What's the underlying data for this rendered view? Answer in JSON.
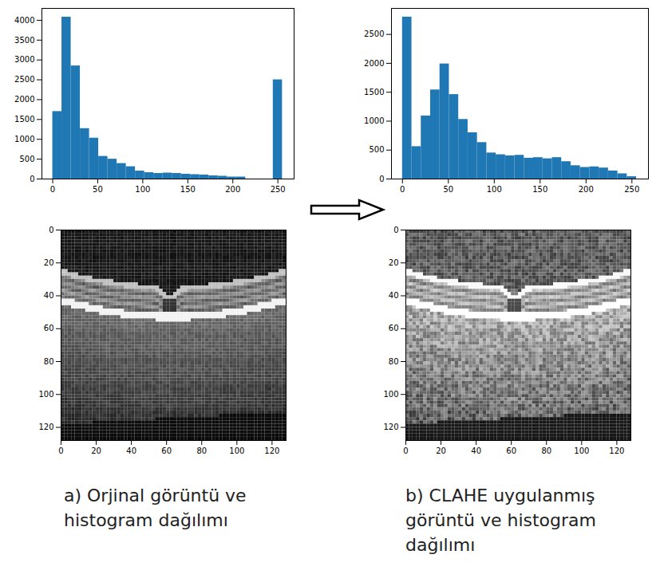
{
  "chart_data": [
    {
      "type": "histogram",
      "color": "#1f77b4",
      "bins": [
        0,
        10.2,
        20.4,
        30.6,
        40.8,
        51,
        61.2,
        71.4,
        81.6,
        91.8,
        102,
        112.2,
        122.4,
        132.6,
        142.8,
        153,
        163.2,
        173.4,
        183.6,
        193.8,
        204,
        214.2,
        224.4,
        234.6,
        244.8,
        255
      ],
      "counts": [
        1700,
        4080,
        2850,
        1270,
        1030,
        570,
        500,
        390,
        310,
        200,
        160,
        140,
        150,
        140,
        120,
        110,
        100,
        80,
        70,
        50,
        50,
        0,
        0,
        0,
        2500
      ],
      "xlim": [
        -12,
        268
      ],
      "xticks": [
        0,
        50,
        100,
        150,
        200,
        250
      ],
      "ylim": [
        0,
        4300
      ],
      "yticks": [
        0,
        500,
        1000,
        1500,
        2000,
        2500,
        3000,
        3500,
        4000
      ]
    },
    {
      "type": "histogram",
      "color": "#1f77b4",
      "bins": [
        0,
        10.2,
        20.4,
        30.6,
        40.8,
        51,
        61.2,
        71.4,
        81.6,
        91.8,
        102,
        112.2,
        122.4,
        132.6,
        142.8,
        153,
        163.2,
        173.4,
        183.6,
        193.8,
        204,
        214.2,
        224.4,
        234.6,
        244.8,
        255
      ],
      "counts": [
        2800,
        560,
        1090,
        1540,
        1990,
        1460,
        1030,
        800,
        630,
        450,
        420,
        400,
        410,
        360,
        370,
        350,
        370,
        300,
        230,
        200,
        210,
        190,
        140,
        90,
        40
      ],
      "xlim": [
        -12,
        268
      ],
      "xticks": [
        0,
        50,
        100,
        150,
        200,
        250
      ],
      "ylim": [
        0,
        2950
      ],
      "yticks": [
        0,
        500,
        1000,
        1500,
        2000,
        2500
      ]
    },
    {
      "type": "image",
      "caption": "a) Orjinal görüntü ve histogram dağılımı",
      "xlim": [
        0,
        128
      ],
      "xticks": [
        0,
        20,
        40,
        60,
        80,
        100,
        120
      ],
      "ylim": [
        128,
        0
      ],
      "yticks": [
        0,
        20,
        40,
        60,
        80,
        100,
        120
      ]
    },
    {
      "type": "image",
      "caption": "b) CLAHE uygulanmış görüntü ve histogram dağılımı",
      "xlim": [
        0,
        128
      ],
      "xticks": [
        0,
        20,
        40,
        60,
        80,
        100,
        120
      ],
      "ylim": [
        128,
        0
      ],
      "yticks": [
        0,
        20,
        40,
        60,
        80,
        100,
        120
      ]
    }
  ]
}
